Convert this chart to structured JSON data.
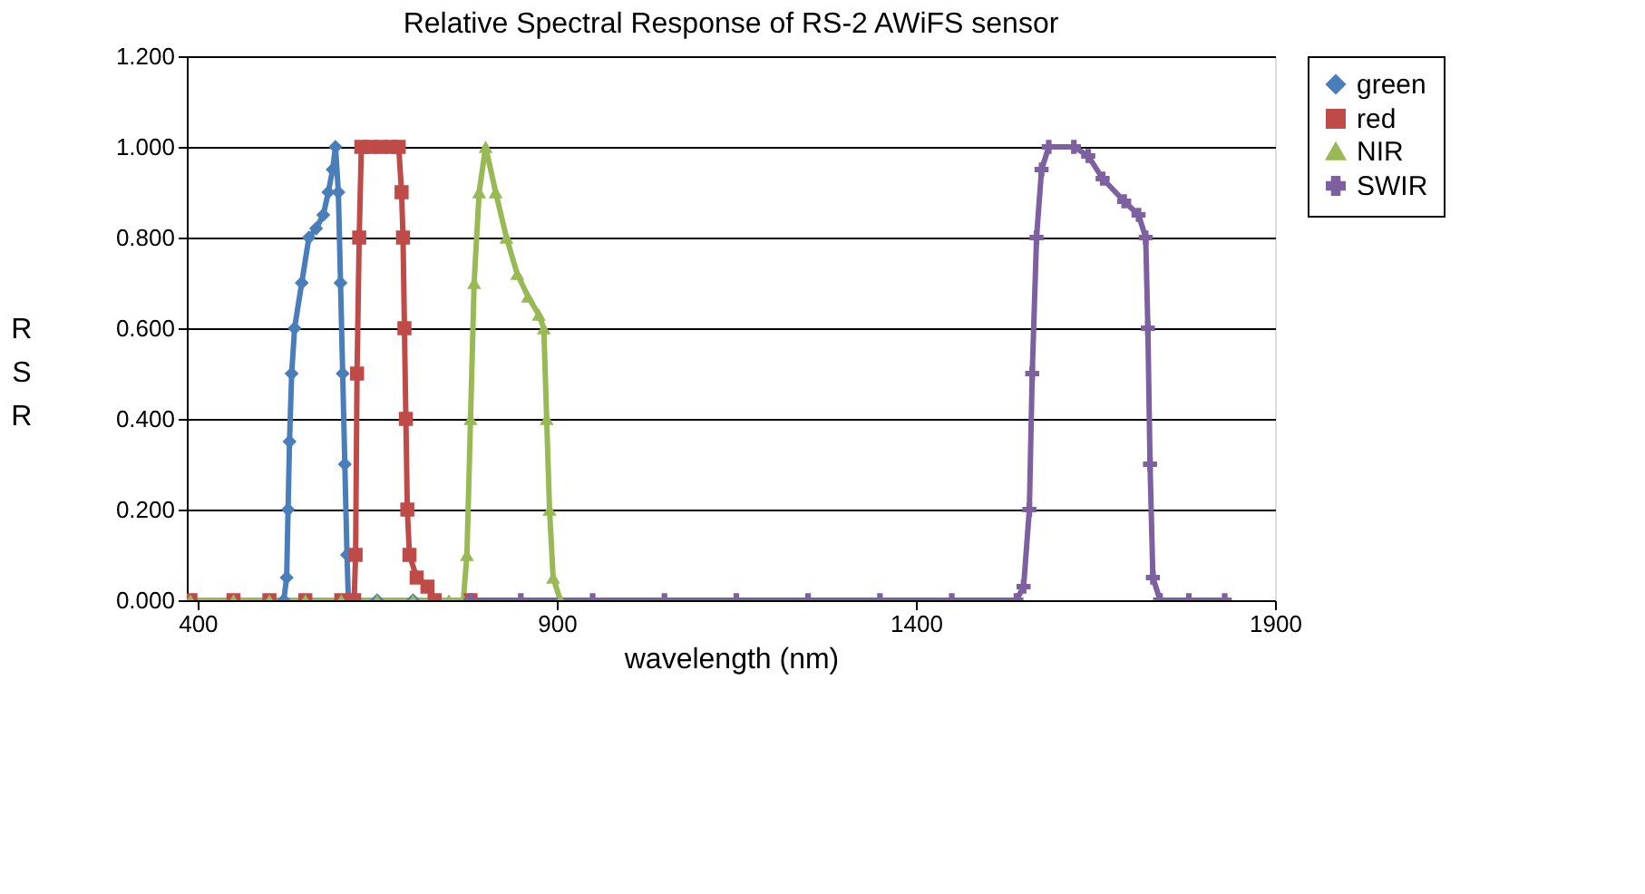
{
  "chart_data": {
    "type": "line",
    "title": "Relative Spectral Response of RS-2 AWiFS sensor",
    "xlabel": "wavelength (nm)",
    "ylabel": "RSR",
    "xlim": [
      385,
      1900
    ],
    "xticks": [
      400,
      900,
      1400,
      1900
    ],
    "ylim": [
      0,
      1.2
    ],
    "yticks": [
      {
        "value": 0,
        "label": "0.000"
      },
      {
        "value": 0.2,
        "label": "0.200"
      },
      {
        "value": 0.4,
        "label": "0.400"
      },
      {
        "value": 0.6,
        "label": "0.600"
      },
      {
        "value": 0.8,
        "label": "0.800"
      },
      {
        "value": 1.0,
        "label": "1.000"
      },
      {
        "value": 1.2,
        "label": "1.200"
      }
    ],
    "grid": "y",
    "legend": "right",
    "line_style": "solid",
    "series": [
      {
        "name": "green",
        "color": "#4a7ebb",
        "marker": "diamond",
        "x": [
          390,
          450,
          500,
          520,
          524,
          526,
          528,
          531,
          535,
          545,
          555,
          565,
          575,
          582,
          588,
          592,
          596,
          599,
          602,
          605,
          608,
          610,
          615,
          650,
          700
        ],
        "values": [
          0,
          0,
          0,
          0,
          0.05,
          0.2,
          0.35,
          0.5,
          0.6,
          0.7,
          0.8,
          0.82,
          0.85,
          0.9,
          0.95,
          1.0,
          0.9,
          0.7,
          0.5,
          0.3,
          0.1,
          0,
          0,
          0,
          0
        ]
      },
      {
        "name": "red",
        "color": "#be4b48",
        "marker": "square",
        "x": [
          390,
          450,
          500,
          550,
          600,
          618,
          620,
          622,
          625,
          628,
          640,
          655,
          670,
          680,
          684,
          686,
          688,
          690,
          692,
          695,
          705,
          720,
          730,
          780
        ],
        "values": [
          0,
          0,
          0,
          0,
          0,
          0,
          0.1,
          0.5,
          0.8,
          1.0,
          1.0,
          1.0,
          1.0,
          1.0,
          0.9,
          0.8,
          0.6,
          0.4,
          0.2,
          0.1,
          0.05,
          0.03,
          0,
          0
        ]
      },
      {
        "name": "NIR",
        "color": "#98b954",
        "marker": "triangle",
        "x": [
          390,
          450,
          500,
          550,
          600,
          650,
          700,
          750,
          770,
          775,
          780,
          785,
          792,
          801,
          815,
          830,
          845,
          860,
          875,
          882,
          886,
          890,
          895,
          905
        ],
        "values": [
          0,
          0,
          0,
          0,
          0,
          0,
          0,
          0,
          0,
          0.1,
          0.4,
          0.7,
          0.9,
          1.0,
          0.9,
          0.8,
          0.72,
          0.67,
          0.63,
          0.6,
          0.4,
          0.2,
          0.05,
          0
        ]
      },
      {
        "name": "SWIR",
        "color": "#7d60a0",
        "marker": "cross",
        "x": [
          780,
          850,
          950,
          1050,
          1150,
          1250,
          1350,
          1450,
          1540,
          1550,
          1558,
          1562,
          1568,
          1575,
          1585,
          1620,
          1640,
          1660,
          1690,
          1710,
          1720,
          1723,
          1726,
          1730,
          1740,
          1780,
          1830
        ],
        "values": [
          0,
          0,
          0,
          0,
          0,
          0,
          0,
          0,
          0,
          0.03,
          0.2,
          0.5,
          0.8,
          0.95,
          1.0,
          1.0,
          0.98,
          0.93,
          0.88,
          0.85,
          0.8,
          0.6,
          0.3,
          0.05,
          0,
          0,
          0
        ]
      }
    ]
  }
}
